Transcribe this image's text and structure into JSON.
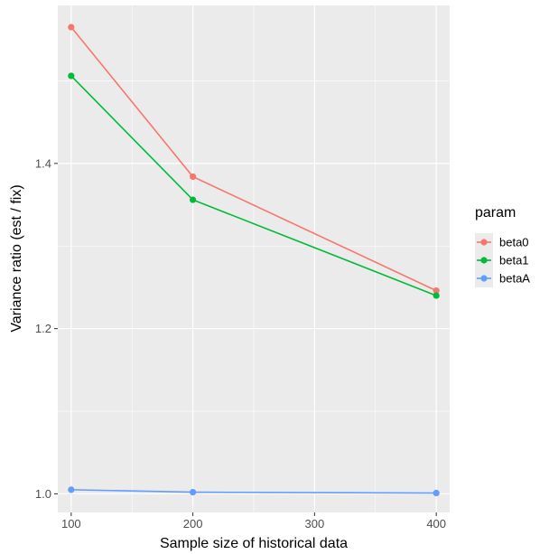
{
  "chart_data": {
    "type": "line",
    "title": "",
    "xlabel": "Sample size of historical data",
    "ylabel": "Variance ratio (est / fix)",
    "x": [
      100,
      200,
      400
    ],
    "xticks": [
      "100",
      "200",
      "300",
      "400"
    ],
    "yticks": [
      "1.0",
      "1.2",
      "1.4"
    ],
    "xlim": [
      89,
      411
    ],
    "ylim": [
      0.9775,
      1.5913
    ],
    "grid": true,
    "legend": {
      "title": "param",
      "placement": "right"
    },
    "series": [
      {
        "name": "beta0",
        "color": "#F8766D",
        "values": [
          1.565,
          1.384,
          1.246
        ]
      },
      {
        "name": "beta1",
        "color": "#00BA38",
        "values": [
          1.506,
          1.356,
          1.24
        ]
      },
      {
        "name": "betaA",
        "color": "#619CFF",
        "values": [
          1.005,
          1.002,
          1.001
        ]
      }
    ]
  }
}
